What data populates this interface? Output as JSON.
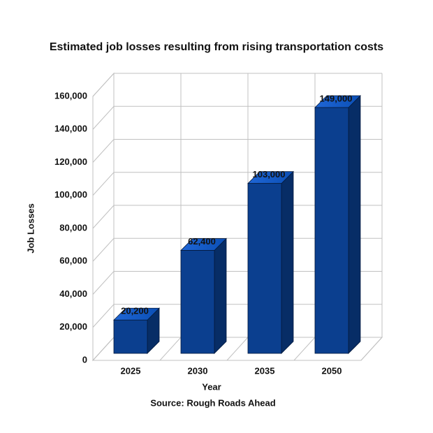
{
  "chart_data": {
    "type": "bar3d",
    "title": "Estimated job losses resulting from rising transportation costs",
    "x_label": "Year",
    "y_label": "Job Losses",
    "source": "Source: Rough Roads Ahead",
    "categories": [
      "2025",
      "2030",
      "2035",
      "2050"
    ],
    "values": [
      20200,
      62400,
      103000,
      149000
    ],
    "value_labels": [
      "20,200",
      "62,400",
      "103,000",
      "149,000"
    ],
    "color": "#0b3f8f",
    "ylim": [
      0,
      160000
    ],
    "yticks": [
      0,
      {
        "value": 20000,
        "label": "20,000"
      },
      {
        "value": 40000,
        "label": "40,000"
      },
      {
        "value": 60000,
        "label": "60,000"
      },
      {
        "value": 80000,
        "label": "80,000"
      },
      {
        "value": 100000,
        "label": "100,000"
      },
      {
        "value": 120000,
        "label": "120,000"
      },
      {
        "value": 140000,
        "label": "140,000"
      },
      {
        "value": 160000,
        "label": "160,000"
      }
    ],
    "grid": true
  }
}
